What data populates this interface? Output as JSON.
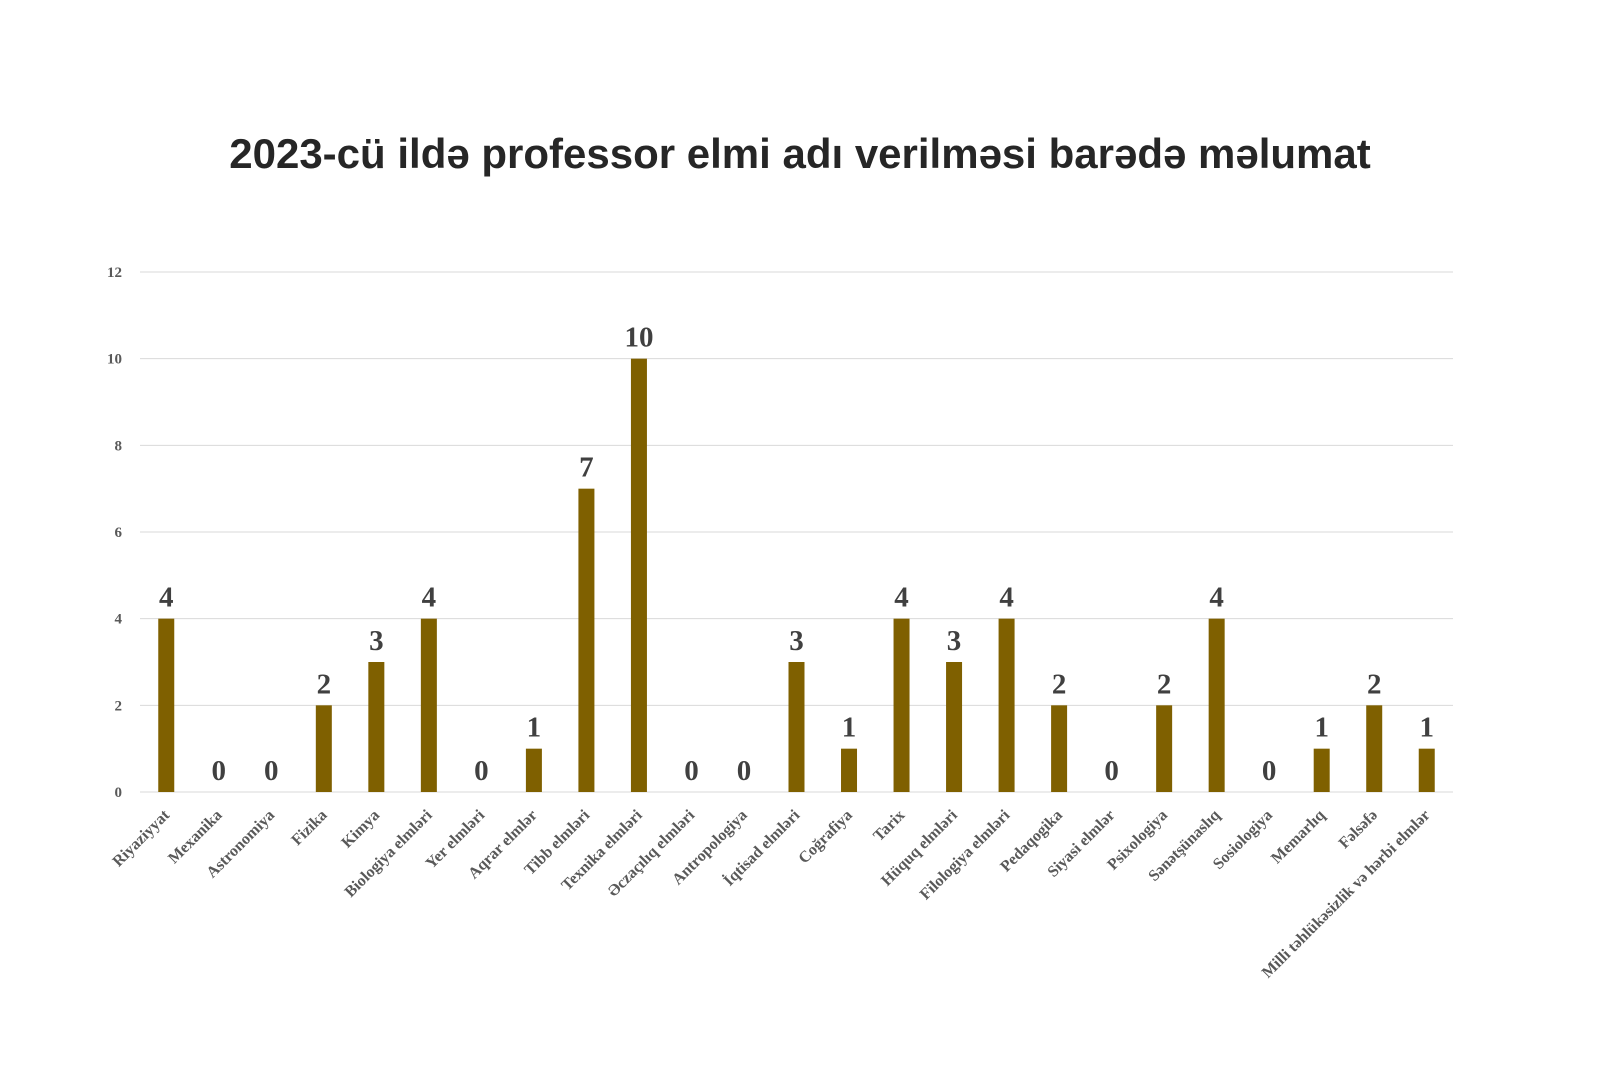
{
  "chart_data": {
    "type": "bar",
    "title": "2023-cü ildə professor elmi adı verilməsi barədə məlumat",
    "xlabel": "",
    "ylabel": "",
    "ylim": [
      0,
      12
    ],
    "yticks": [
      0,
      2,
      4,
      6,
      8,
      10,
      12
    ],
    "grid": true,
    "legend": "none",
    "bar_color": "#7f6000",
    "categories": [
      "Riyaziyyat",
      "Mexanika",
      "Astronomiya",
      "Fizika",
      "Kimya",
      "Biologiya elmləri",
      "Yer elmləri",
      "Aqrar elmlər",
      "Tibb elmləri",
      "Texnika elmləri",
      "Əczaçılıq elmləri",
      "Antropologiya",
      "İqtisad elmləri",
      "Coğrafiya",
      "Tarix",
      "Hüquq elmləri",
      "Filologiya elmləri",
      "Pedaqogika",
      "Siyasi elmlər",
      "Psixologiya",
      "Sənətşünaslıq",
      "Sosiologiya",
      "Memarlıq",
      "Fəlsəfə",
      "Milli təhlükəsizlik və hərbi elmlər"
    ],
    "values": [
      4,
      0,
      0,
      2,
      3,
      4,
      0,
      1,
      7,
      10,
      0,
      0,
      3,
      1,
      4,
      3,
      4,
      2,
      0,
      2,
      4,
      0,
      1,
      2,
      1
    ]
  }
}
